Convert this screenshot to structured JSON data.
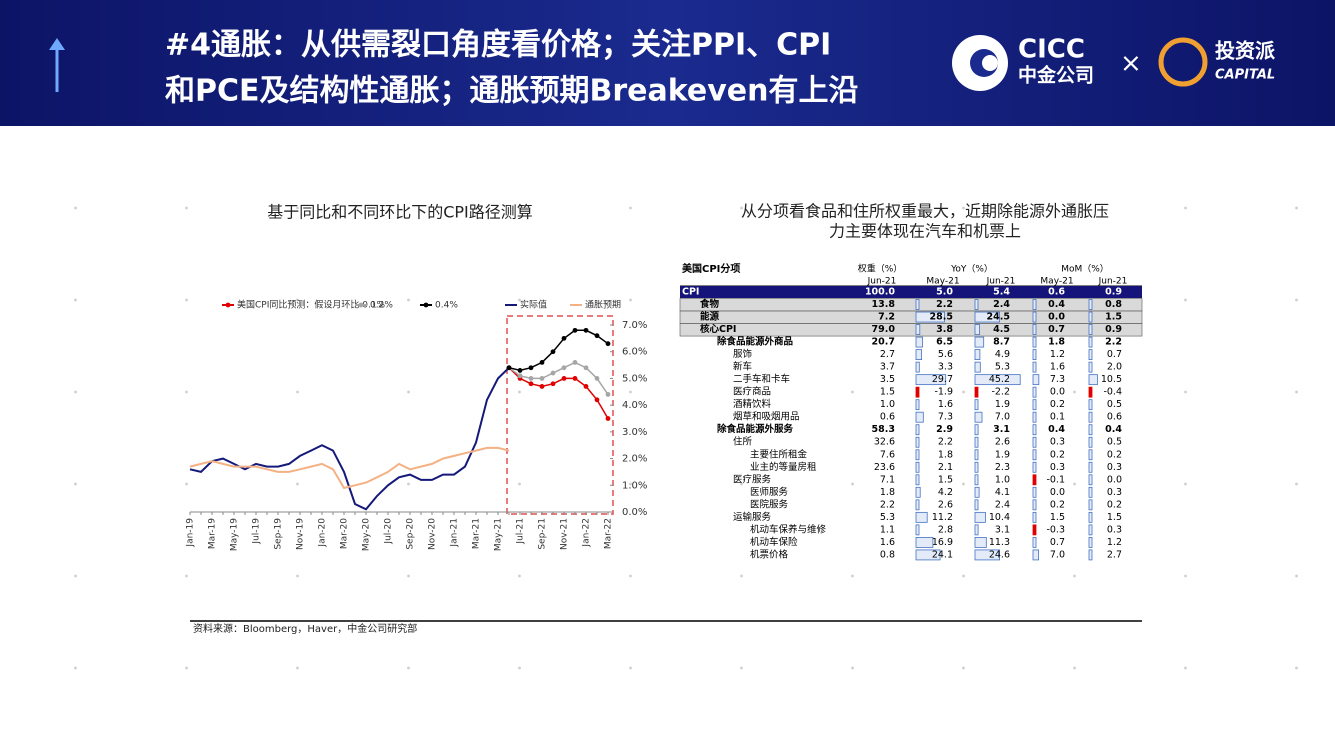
{
  "header": {
    "title": [
      "#4通胀：从供需裂口角度看价格；关注PPI、CPI",
      "和PCE及结构性通胀；通胀预期Breakeven有上沿"
    ],
    "logo_cicc": "CICC",
    "logo_cicc_cn": "中金公司",
    "times": "×",
    "logo_tzp": "投资派",
    "logo_capital": "CAPITAL"
  },
  "chart_data": {
    "type": "line",
    "title": "基于同比和不同环比下的CPI路径测算",
    "categories": [
      "Jan-19",
      null,
      "Mar-19",
      null,
      "May-19",
      null,
      "Jul-19",
      null,
      "Sep-19",
      null,
      "Nov-19",
      null,
      "Jan-20",
      null,
      "Mar-20",
      null,
      "May-20",
      null,
      "Jul-20",
      null,
      "Sep-20",
      null,
      "Nov-20",
      null,
      "Jan-21",
      null,
      "Mar-21",
      null,
      "May-21",
      null,
      "Jul-21",
      null,
      "Sep-21",
      null,
      "Nov-21",
      null,
      "Jan-22",
      null,
      "Mar-22"
    ],
    "series": [
      {
        "name": "美国CPI同比预测：假设月环比 0.1%",
        "color": "#e00000",
        "markers": true,
        "values": [
          null,
          null,
          null,
          null,
          null,
          null,
          null,
          null,
          null,
          null,
          null,
          null,
          null,
          null,
          null,
          null,
          null,
          null,
          null,
          null,
          null,
          null,
          null,
          null,
          null,
          null,
          null,
          null,
          null,
          5.4,
          5.0,
          4.8,
          4.7,
          4.8,
          5.0,
          5.0,
          4.7,
          4.2,
          3.5
        ]
      },
      {
        "name": "0.2%",
        "color": "#a6a6a6",
        "markers": true,
        "values": [
          null,
          null,
          null,
          null,
          null,
          null,
          null,
          null,
          null,
          null,
          null,
          null,
          null,
          null,
          null,
          null,
          null,
          null,
          null,
          null,
          null,
          null,
          null,
          null,
          null,
          null,
          null,
          null,
          null,
          5.4,
          5.1,
          5.0,
          5.0,
          5.2,
          5.4,
          5.6,
          5.4,
          5.0,
          4.4
        ]
      },
      {
        "name": "0.4%",
        "color": "#000000",
        "markers": true,
        "values": [
          null,
          null,
          null,
          null,
          null,
          null,
          null,
          null,
          null,
          null,
          null,
          null,
          null,
          null,
          null,
          null,
          null,
          null,
          null,
          null,
          null,
          null,
          null,
          null,
          null,
          null,
          null,
          null,
          null,
          5.4,
          5.3,
          5.4,
          5.6,
          6.0,
          6.5,
          6.8,
          6.8,
          6.6,
          6.3
        ]
      },
      {
        "name": "实际值",
        "color": "#14197a",
        "markers": false,
        "values": [
          1.6,
          1.5,
          1.9,
          2.0,
          1.8,
          1.6,
          1.8,
          1.7,
          1.7,
          1.8,
          2.1,
          2.3,
          2.5,
          2.3,
          1.5,
          0.3,
          0.1,
          0.6,
          1.0,
          1.3,
          1.4,
          1.2,
          1.2,
          1.4,
          1.4,
          1.7,
          2.6,
          4.2,
          5.0,
          5.4,
          null,
          null,
          null,
          null,
          null,
          null,
          null,
          null,
          null
        ]
      },
      {
        "name": "通胀预期",
        "color": "#f4b183",
        "markers": false,
        "values": [
          1.7,
          1.8,
          1.9,
          1.8,
          1.7,
          1.7,
          1.7,
          1.6,
          1.5,
          1.5,
          1.6,
          1.7,
          1.8,
          1.6,
          0.9,
          1.0,
          1.1,
          1.3,
          1.5,
          1.8,
          1.6,
          1.7,
          1.8,
          2.0,
          2.1,
          2.2,
          2.3,
          2.4,
          2.4,
          2.3,
          null,
          null,
          null,
          null,
          null,
          null,
          null,
          null,
          null
        ]
      }
    ],
    "ylim": [
      0,
      7
    ],
    "yticks": [
      {
        "value": 0,
        "label": "0.0%"
      },
      {
        "value": 1,
        "label": "1.0%"
      },
      {
        "value": 2,
        "label": "2.0%"
      },
      {
        "value": 3,
        "label": "3.0%"
      },
      {
        "value": 4,
        "label": "4.0%"
      },
      {
        "value": 5,
        "label": "5.0%"
      },
      {
        "value": 6,
        "label": "6.0%"
      },
      {
        "value": 7,
        "label": "7.0%"
      }
    ],
    "grid": false
  },
  "table": {
    "title": [
      "从分项看食品和住所权重最大，近期除能源外通胀压",
      "力主要体现在汽车和机票上"
    ],
    "header": [
      "美国CPI分项",
      "权重（%）",
      "YoY（%）",
      "MoM（%）"
    ],
    "subheader": [
      "Jun-21",
      "May-21",
      "Jun-21",
      "May-21",
      "Jun-21"
    ],
    "rows": [
      [
        "CPI",
        "100.0",
        "5.0",
        "5.4",
        "0.6",
        "0.9"
      ],
      [
        "食物",
        "13.8",
        "2.2",
        "2.4",
        "0.4",
        "0.8"
      ],
      [
        "能源",
        "7.2",
        "28.5",
        "24.5",
        "0.0",
        "1.5"
      ],
      [
        "核心CPI",
        "79.0",
        "3.8",
        "4.5",
        "0.7",
        "0.9"
      ],
      [
        "除食品能源外商品",
        "20.7",
        "6.5",
        "8.7",
        "1.8",
        "2.2"
      ],
      [
        "服饰",
        "2.7",
        "5.6",
        "4.9",
        "1.2",
        "0.7"
      ],
      [
        "新车",
        "3.7",
        "3.3",
        "5.3",
        "1.6",
        "2.0"
      ],
      [
        "二手车和卡车",
        "3.5",
        "29.7",
        "45.2",
        "7.3",
        "10.5"
      ],
      [
        "医疗商品",
        "1.5",
        "-1.9",
        "-2.2",
        "0.0",
        "-0.4"
      ],
      [
        "酒精饮料",
        "1.0",
        "1.6",
        "1.9",
        "0.2",
        "0.5"
      ],
      [
        "烟草和吸烟用品",
        "0.6",
        "7.3",
        "7.0",
        "0.1",
        "0.6"
      ],
      [
        "除食品能源外服务",
        "58.3",
        "2.9",
        "3.1",
        "0.4",
        "0.4"
      ],
      [
        "住所",
        "32.6",
        "2.2",
        "2.6",
        "0.3",
        "0.5"
      ],
      [
        "主要住所租金",
        "7.6",
        "1.8",
        "1.9",
        "0.2",
        "0.2"
      ],
      [
        "业主的等量房租",
        "23.6",
        "2.1",
        "2.3",
        "0.3",
        "0.3"
      ],
      [
        "医疗服务",
        "7.1",
        "1.5",
        "1.0",
        "-0.1",
        "0.0"
      ],
      [
        "医师服务",
        "1.8",
        "4.2",
        "4.1",
        "0.0",
        "0.3"
      ],
      [
        "医院服务",
        "2.2",
        "2.6",
        "2.4",
        "0.2",
        "0.2"
      ],
      [
        "运输服务",
        "5.3",
        "11.2",
        "10.4",
        "1.5",
        "1.5"
      ],
      [
        "机动车保养与维修",
        "1.1",
        "2.8",
        "3.1",
        "-0.3",
        "0.3"
      ],
      [
        "机动车保险",
        "1.6",
        "16.9",
        "11.3",
        "0.7",
        "1.2"
      ],
      [
        "机票价格",
        "0.8",
        "24.1",
        "24.6",
        "7.0",
        "2.7"
      ]
    ]
  },
  "source": "资料来源：Bloomberg，Haver，中金公司研究部"
}
